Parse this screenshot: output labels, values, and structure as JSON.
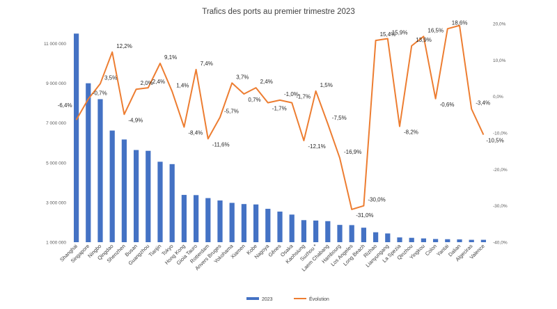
{
  "chart_data": {
    "type": "bar+line",
    "title": "Trafics des ports au premier trimestre 2023",
    "categories": [
      "Shanghai",
      "Singapore",
      "Ningbo",
      "Qingdao",
      "Shenzhen",
      "Busan",
      "Guangzhou",
      "Tianjin",
      "Tokyo",
      "Hong Kong",
      "Gioia Tauro",
      "Rotterdam",
      "Anvers Bruges",
      "Yokohama",
      "Xiamen",
      "Kobe",
      "Nagoya",
      "Gênes",
      "Osaka",
      "Kaohsiung",
      "Suzhou *",
      "Laem Chabang",
      "Hambourg",
      "Los Angeles",
      "Long Beach",
      "Rizhao",
      "Lianyungang",
      "La Spezia",
      "Qinzhou",
      "Yingkou",
      "Colon",
      "Yantai",
      "Dalian",
      "Algeciras",
      "Valence"
    ],
    "series": [
      {
        "name": "2023",
        "type": "bar",
        "axis": "left",
        "color": "#4472C4",
        "values": [
          11500000,
          9000000,
          8200000,
          6620000,
          6170000,
          5640000,
          5600000,
          5050000,
          4930000,
          3380000,
          3370000,
          3220000,
          3100000,
          2980000,
          2920000,
          2900000,
          2680000,
          2540000,
          2390000,
          2110000,
          2090000,
          2060000,
          1870000,
          1860000,
          1730000,
          1500000,
          1440000,
          1240000,
          1220000,
          1190000,
          1160000,
          1150000,
          1140000,
          1120000,
          1120000
        ]
      },
      {
        "name": "Évolution",
        "type": "line",
        "axis": "right",
        "color": "#ED7D31",
        "values": [
          -6.4,
          -0.7,
          3.5,
          12.2,
          -4.9,
          2.0,
          2.4,
          9.1,
          1.4,
          -8.4,
          7.4,
          -11.6,
          -5.7,
          3.7,
          0.7,
          2.4,
          -1.7,
          -1.0,
          -1.7,
          -12.1,
          1.5,
          -7.5,
          -16.9,
          -31.0,
          -30.0,
          15.4,
          15.9,
          -8.2,
          13.9,
          16.5,
          -0.6,
          18.6,
          19.5,
          -3.4,
          -10.5
        ],
        "labels": [
          "-6,4%",
          "-0,7%",
          "3,5%",
          "12,2%",
          "-4,9%",
          "2,0%",
          "2,4%",
          "9,1%",
          "1,4%",
          "-8,4%",
          "7,4%",
          "-11,6%",
          "-5,7%",
          "3,7%",
          "0,7%",
          "2,4%",
          "-1,7%",
          "-1,0%",
          "-1,7%",
          "-12,1%",
          "1,5%",
          "-7,5%",
          "-16,9%",
          "-31,0%",
          "-30,0%",
          "15,4%",
          "15,9%",
          "-8,2%",
          "13,9%",
          "16,5%",
          "-0,6%",
          "18,6%",
          "",
          "-3,4%",
          "-10,5%"
        ]
      }
    ],
    "y_left": {
      "ylim": [
        1000000,
        12000000
      ],
      "ticks": [
        1000000,
        3000000,
        5000000,
        7000000,
        9000000,
        11000000
      ],
      "tick_labels": [
        "1 000 000",
        "3 000 000",
        "5 000 000",
        "7 000 000",
        "9 000 000",
        "11 000 000"
      ]
    },
    "y_right": {
      "ylim": [
        -40,
        20
      ],
      "ticks": [
        -40,
        -30,
        -20,
        -10,
        0,
        10,
        20
      ],
      "tick_labels": [
        "-40,0%",
        "-30,0%",
        "-20,0%",
        "-10,0%",
        "0,0%",
        "10,0%",
        "20,0%"
      ]
    },
    "grid": false,
    "legend": {
      "position": "bottom",
      "entries": [
        "2023",
        "Évolution"
      ]
    }
  }
}
